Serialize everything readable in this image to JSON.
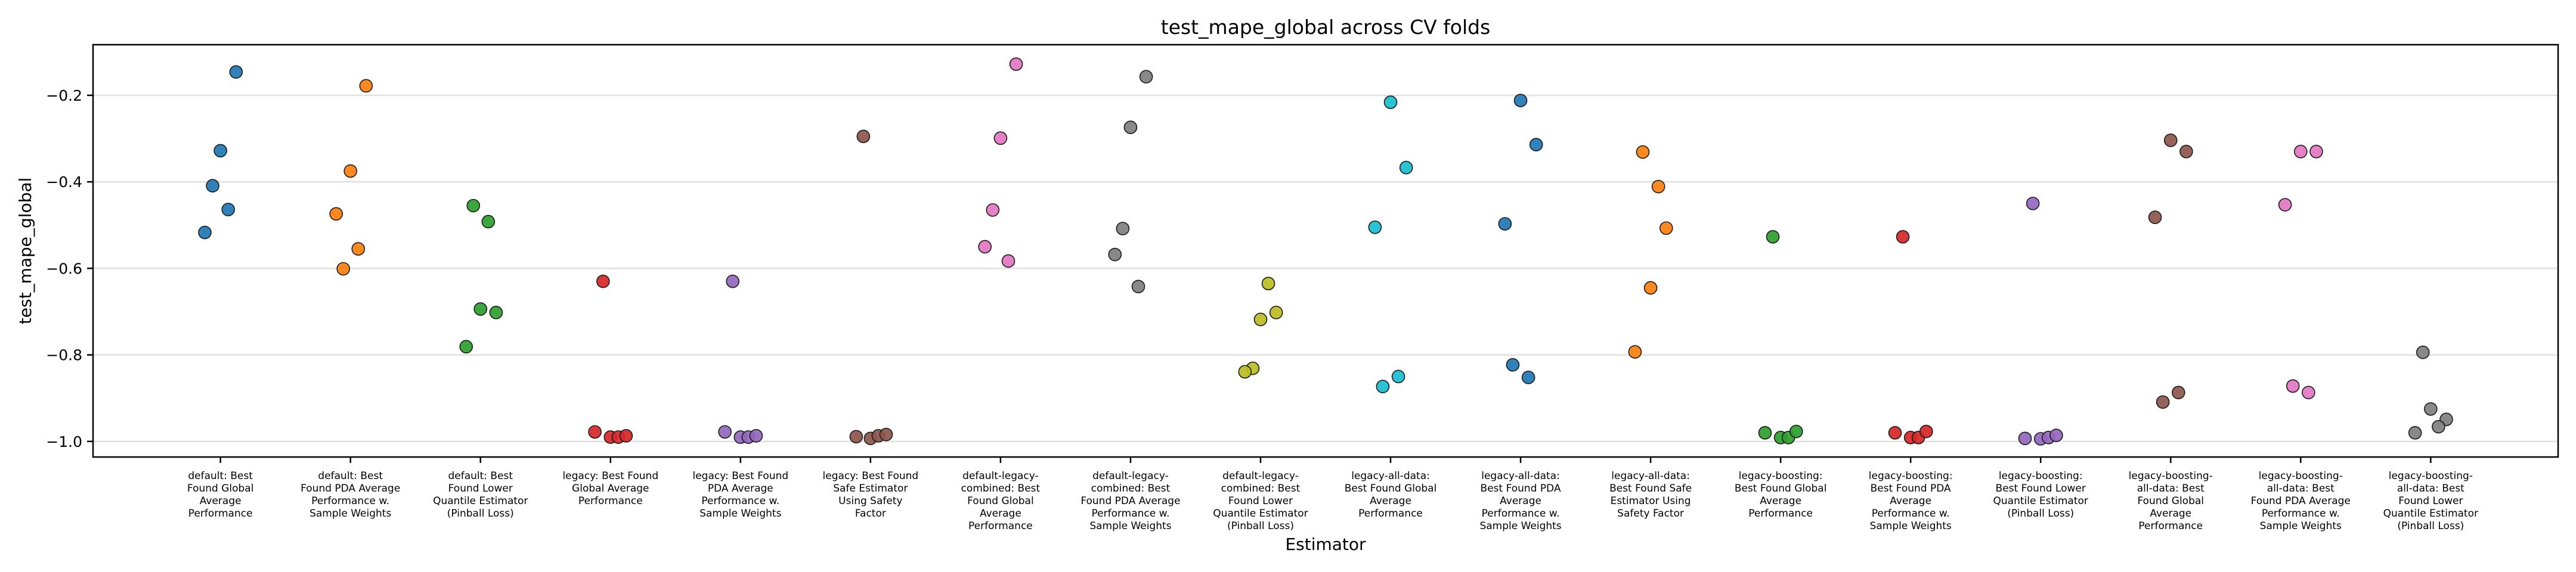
{
  "chart_data": {
    "type": "scatter",
    "title": "test_mape_global across CV folds",
    "xlabel": "Estimator",
    "ylabel": "test_mape_global",
    "ylim": [
      -1.036,
      -0.083
    ],
    "xlim": [
      -0.98,
      17.98
    ],
    "yticks": [
      -1.0,
      -0.8,
      -0.6,
      -0.4,
      -0.2
    ],
    "ytick_labels": [
      "−1.0",
      "−0.8",
      "−0.6",
      "−0.4",
      "−0.2"
    ],
    "grid": {
      "y": true,
      "x": false
    },
    "legend": null,
    "categories": [
      "default: Best Found Global Average Performance",
      "default: Best Found PDA Average Performance w. Sample Weights",
      "default: Best Found Lower Quantile Estimator (Pinball Loss)",
      "legacy: Best Found Global Average Performance",
      "legacy: Best Found PDA Average Performance w. Sample Weights",
      "legacy: Best Found Safe Estimator Using Safety Factor",
      "default-legacy-combined: Best Found Global Average Performance",
      "default-legacy-combined: Best Found PDA Average Performance w. Sample Weights",
      "default-legacy-combined: Best Found Lower Quantile Estimator (Pinball Loss)",
      "legacy-all-data: Best Found Global Average Performance",
      "legacy-all-data: Best Found PDA Average Performance w. Sample Weights",
      "legacy-all-data: Best Found Safe Estimator Using Safety Factor",
      "legacy-boosting: Best Found Global Average Performance",
      "legacy-boosting: Best Found PDA Average Performance w. Sample Weights",
      "legacy-boosting: Best Found Lower Quantile Estimator (Pinball Loss)",
      "legacy-boosting-all-data: Best Found Global Average Performance",
      "legacy-boosting-all-data: Best Found PDA Average Performance w. Sample Weights",
      "legacy-boosting-all-data: Best Found Lower Quantile Estimator (Pinball Loss)"
    ],
    "tick_label_lines": [
      [
        "default: Best",
        "Found Global",
        "Average",
        "Performance"
      ],
      [
        "default: Best",
        "Found PDA Average",
        "Performance w.",
        "Sample Weights"
      ],
      [
        "default: Best",
        "Found Lower",
        "Quantile Estimator",
        "(Pinball Loss)"
      ],
      [
        "legacy: Best Found",
        "Global Average",
        "Performance"
      ],
      [
        "legacy: Best Found",
        "PDA Average",
        "Performance w.",
        "Sample Weights"
      ],
      [
        "legacy: Best Found",
        "Safe Estimator",
        "Using Safety",
        "Factor"
      ],
      [
        "default-legacy-",
        "combined: Best",
        "Found Global",
        "Average",
        "Performance"
      ],
      [
        "default-legacy-",
        "combined: Best",
        "Found PDA Average",
        "Performance w.",
        "Sample Weights"
      ],
      [
        "default-legacy-",
        "combined: Best",
        "Found Lower",
        "Quantile Estimator",
        "(Pinball Loss)"
      ],
      [
        "legacy-all-data:",
        "Best Found Global",
        "Average",
        "Performance"
      ],
      [
        "legacy-all-data:",
        "Best Found PDA",
        "Average",
        "Performance w.",
        "Sample Weights"
      ],
      [
        "legacy-all-data:",
        "Best Found Safe",
        "Estimator Using",
        "Safety Factor"
      ],
      [
        "legacy-boosting:",
        "Best Found Global",
        "Average",
        "Performance"
      ],
      [
        "legacy-boosting:",
        "Best Found PDA",
        "Average",
        "Performance w.",
        "Sample Weights"
      ],
      [
        "legacy-boosting:",
        "Best Found Lower",
        "Quantile Estimator",
        "(Pinball Loss)"
      ],
      [
        "legacy-boosting-",
        "all-data: Best",
        "Found Global",
        "Average",
        "Performance"
      ],
      [
        "legacy-boosting-",
        "all-data: Best",
        "Found PDA Average",
        "Performance w.",
        "Sample Weights"
      ],
      [
        "legacy-boosting-",
        "all-data: Best",
        "Found Lower",
        "Quantile Estimator",
        "(Pinball Loss)"
      ]
    ],
    "colors": [
      "#1f77b4",
      "#ff7f0e",
      "#2ca02c",
      "#d62728",
      "#9467bd",
      "#8c564b",
      "#e377c2",
      "#7f7f7f",
      "#bcbd22",
      "#17becf",
      "#1f77b4",
      "#ff7f0e",
      "#2ca02c",
      "#d62728",
      "#9467bd",
      "#8c564b",
      "#e377c2",
      "#7f7f7f"
    ],
    "series": [
      {
        "name": "default: Best Found Global Average Performance",
        "values": [
          -0.146,
          -0.328,
          -0.409,
          -0.464,
          -0.517
        ],
        "jitter": [
          0.12,
          0.0,
          -0.06,
          0.06,
          -0.12
        ]
      },
      {
        "name": "default: Best Found PDA Average Performance w. Sample Weights",
        "values": [
          -0.178,
          -0.375,
          -0.474,
          -0.555,
          -0.601
        ],
        "jitter": [
          0.12,
          0.0,
          -0.11,
          0.06,
          -0.055
        ]
      },
      {
        "name": "default: Best Found Lower Quantile Estimator (Pinball Loss)",
        "values": [
          -0.455,
          -0.492,
          -0.694,
          -0.702,
          -0.781
        ],
        "jitter": [
          -0.055,
          0.06,
          0.0,
          0.12,
          -0.11
        ]
      },
      {
        "name": "legacy: Best Found Global Average Performance",
        "values": [
          -0.63,
          -0.978,
          -0.99,
          -0.99,
          -0.987
        ],
        "jitter": [
          -0.057,
          -0.12,
          0.0,
          0.06,
          0.12
        ]
      },
      {
        "name": "legacy: Best Found PDA Average Performance w. Sample Weights",
        "values": [
          -0.63,
          -0.978,
          -0.99,
          -0.99,
          -0.987
        ],
        "jitter": [
          -0.06,
          -0.12,
          0.0,
          0.06,
          0.12
        ]
      },
      {
        "name": "legacy: Best Found Safe Estimator Using Safety Factor",
        "values": [
          -0.295,
          -0.989,
          -0.993,
          -0.987,
          -0.984
        ],
        "jitter": [
          -0.055,
          -0.11,
          0.0,
          0.06,
          0.12
        ]
      },
      {
        "name": "default-legacy-combined: Best Found Global Average Performance",
        "values": [
          -0.128,
          -0.299,
          -0.465,
          -0.55,
          -0.583
        ],
        "jitter": [
          0.12,
          0.0,
          -0.06,
          -0.12,
          0.06
        ]
      },
      {
        "name": "default-legacy-combined: Best Found PDA Average Performance w. Sample Weights",
        "values": [
          -0.157,
          -0.274,
          -0.508,
          -0.568,
          -0.642
        ],
        "jitter": [
          0.12,
          0.0,
          -0.06,
          -0.12,
          0.06
        ]
      },
      {
        "name": "default-legacy-combined: Best Found Lower Quantile Estimator (Pinball Loss)",
        "values": [
          -0.635,
          -0.702,
          -0.718,
          -0.831,
          -0.839
        ],
        "jitter": [
          0.06,
          0.12,
          0.0,
          -0.06,
          -0.12
        ]
      },
      {
        "name": "legacy-all-data: Best Found Global Average Performance",
        "values": [
          -0.216,
          -0.367,
          -0.505,
          -0.85,
          -0.873
        ],
        "jitter": [
          0.0,
          0.12,
          -0.12,
          0.06,
          -0.06
        ]
      },
      {
        "name": "legacy-all-data: Best Found PDA Average Performance w. Sample Weights",
        "values": [
          -0.212,
          -0.314,
          -0.497,
          -0.823,
          -0.852
        ],
        "jitter": [
          0.0,
          0.12,
          -0.12,
          -0.06,
          0.06
        ]
      },
      {
        "name": "legacy-all-data: Best Found Safe Estimator Using Safety Factor",
        "values": [
          -0.331,
          -0.411,
          -0.507,
          -0.645,
          -0.793
        ],
        "jitter": [
          -0.06,
          0.06,
          0.12,
          0.0,
          -0.12
        ]
      },
      {
        "name": "legacy-boosting: Best Found Global Average Performance",
        "values": [
          -0.527,
          -0.98,
          -0.991,
          -0.991,
          -0.977
        ],
        "jitter": [
          -0.06,
          -0.12,
          0.0,
          0.06,
          0.12
        ]
      },
      {
        "name": "legacy-boosting: Best Found PDA Average Performance w. Sample Weights",
        "values": [
          -0.527,
          -0.98,
          -0.991,
          -0.991,
          -0.977
        ],
        "jitter": [
          -0.06,
          -0.12,
          0.0,
          0.06,
          0.12
        ]
      },
      {
        "name": "legacy-boosting: Best Found Lower Quantile Estimator (Pinball Loss)",
        "values": [
          -0.45,
          -0.993,
          -0.994,
          -0.991,
          -0.986
        ],
        "jitter": [
          -0.06,
          -0.12,
          0.0,
          0.06,
          0.12
        ]
      },
      {
        "name": "legacy-boosting-all-data: Best Found Global Average Performance",
        "values": [
          -0.304,
          -0.33,
          -0.482,
          -0.887,
          -0.909
        ],
        "jitter": [
          0.0,
          0.12,
          -0.12,
          0.06,
          -0.06
        ]
      },
      {
        "name": "legacy-boosting-all-data: Best Found PDA Average Performance w. Sample Weights",
        "values": [
          -0.33,
          -0.33,
          -0.453,
          -0.872,
          -0.887
        ],
        "jitter": [
          0.0,
          0.12,
          -0.12,
          -0.06,
          0.06
        ]
      },
      {
        "name": "legacy-boosting-all-data: Best Found Lower Quantile Estimator (Pinball Loss)",
        "values": [
          -0.794,
          -0.925,
          -0.949,
          -0.966,
          -0.98
        ],
        "jitter": [
          -0.06,
          0.0,
          0.12,
          0.06,
          -0.12
        ]
      }
    ]
  }
}
